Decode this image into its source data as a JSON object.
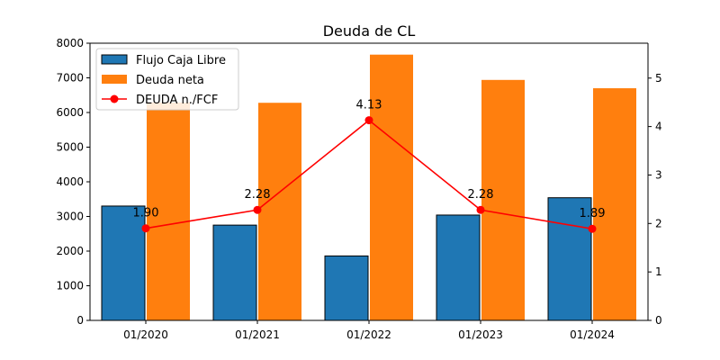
{
  "chart_data": {
    "type": "bar",
    "title": "Deuda de CL",
    "xlabel": "",
    "ylabel_left": "",
    "ylabel_right": "",
    "categories": [
      "01/2020",
      "01/2021",
      "01/2022",
      "01/2023",
      "01/2024"
    ],
    "series": [
      {
        "name": "Flujo Caja Libre",
        "type": "bar",
        "axis": "left",
        "color": "#1f77b4",
        "values": [
          3300,
          2750,
          1860,
          3040,
          3540
        ]
      },
      {
        "name": "Deuda neta",
        "type": "bar",
        "axis": "left",
        "color": "#ff7f0e",
        "values": [
          6290,
          6280,
          7670,
          6940,
          6700
        ]
      },
      {
        "name": "DEUDA n./FCF",
        "type": "line",
        "axis": "right",
        "color": "#ff0000",
        "values": [
          1.9,
          2.28,
          4.13,
          2.28,
          1.89
        ],
        "labels": [
          "1.90",
          "2.28",
          "4.13",
          "2.28",
          "1.89"
        ]
      }
    ],
    "ylim_left": [
      0,
      8000
    ],
    "yticks_left": [
      "0",
      "1000",
      "2000",
      "3000",
      "4000",
      "5000",
      "6000",
      "7000",
      "8000"
    ],
    "ylim_right": [
      0,
      5.72
    ],
    "yticks_right": [
      "0",
      "1",
      "2",
      "3",
      "4",
      "5"
    ],
    "grid": false,
    "legend_position": "upper-left"
  }
}
